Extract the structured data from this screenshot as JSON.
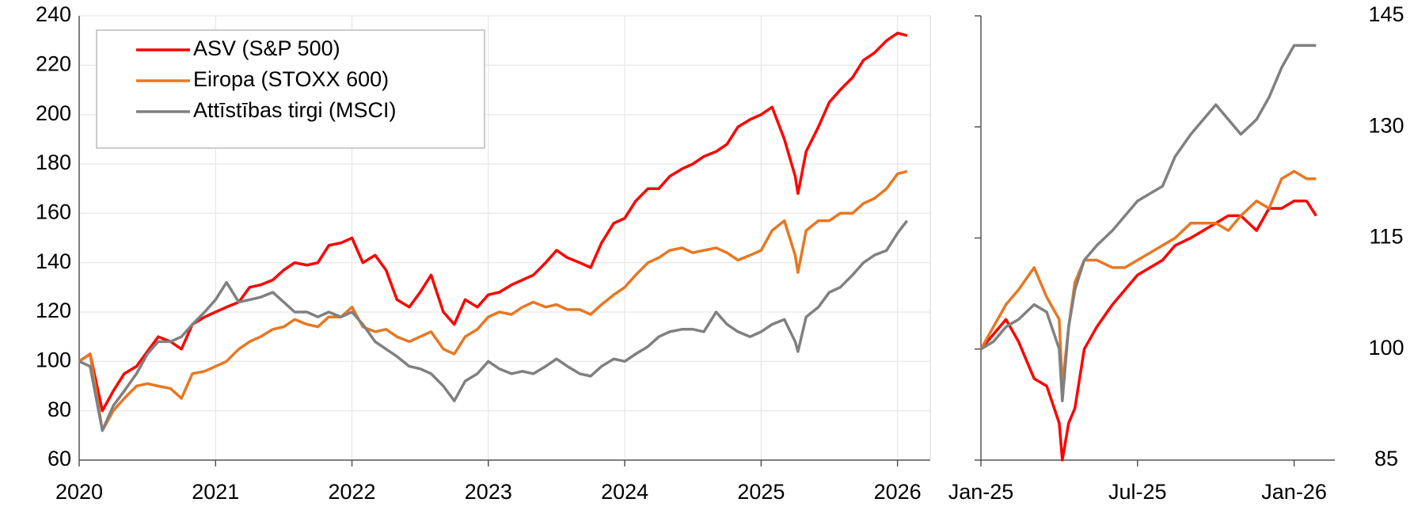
{
  "chart_data": [
    {
      "type": "line",
      "xlim": [
        2020,
        2026.24
      ],
      "xticks": [
        2020,
        2021,
        2022,
        2023,
        2024,
        2025,
        2026
      ],
      "ylim": [
        60,
        240
      ],
      "yticks": [
        60,
        80,
        100,
        120,
        140,
        160,
        180,
        200,
        220,
        240
      ],
      "grid": true,
      "legend": "upper left",
      "y_axis_position": "left",
      "x": [
        2020.0,
        2020.08,
        2020.17,
        2020.25,
        2020.33,
        2020.42,
        2020.5,
        2020.58,
        2020.67,
        2020.75,
        2020.83,
        2020.92,
        2021.0,
        2021.08,
        2021.17,
        2021.25,
        2021.33,
        2021.42,
        2021.5,
        2021.58,
        2021.67,
        2021.75,
        2021.83,
        2021.92,
        2022.0,
        2022.08,
        2022.17,
        2022.25,
        2022.33,
        2022.42,
        2022.5,
        2022.58,
        2022.67,
        2022.75,
        2022.83,
        2022.92,
        2023.0,
        2023.08,
        2023.17,
        2023.25,
        2023.33,
        2023.42,
        2023.5,
        2023.58,
        2023.67,
        2023.75,
        2023.83,
        2023.92,
        2024.0,
        2024.08,
        2024.17,
        2024.25,
        2024.33,
        2024.42,
        2024.5,
        2024.58,
        2024.67,
        2024.75,
        2024.83,
        2024.92,
        2025.0,
        2025.08,
        2025.17,
        2025.25,
        2025.27,
        2025.33,
        2025.42,
        2025.5,
        2025.58,
        2025.67,
        2025.75,
        2025.83,
        2025.92,
        2026.0,
        2026.07
      ],
      "series": [
        {
          "name": "ASV (S&P 500)",
          "color": "#ff0000",
          "values": [
            100,
            103,
            80,
            88,
            95,
            98,
            104,
            110,
            108,
            105,
            115,
            118,
            120,
            122,
            124,
            130,
            131,
            133,
            137,
            140,
            139,
            140,
            147,
            148,
            150,
            140,
            143,
            137,
            125,
            122,
            128,
            135,
            120,
            115,
            125,
            122,
            127,
            128,
            131,
            133,
            135,
            140,
            145,
            142,
            140,
            138,
            148,
            156,
            158,
            165,
            170,
            170,
            175,
            178,
            180,
            183,
            185,
            188,
            195,
            198,
            200,
            203,
            190,
            175,
            168,
            185,
            195,
            205,
            210,
            215,
            222,
            225,
            230,
            233,
            232
          ]
        },
        {
          "name": "Eiropa (STOXX 600)",
          "color": "#e87722",
          "values": [
            100,
            103,
            72,
            80,
            85,
            90,
            91,
            90,
            89,
            85,
            95,
            96,
            98,
            100,
            105,
            108,
            110,
            113,
            114,
            117,
            115,
            114,
            118,
            118,
            122,
            114,
            112,
            113,
            110,
            108,
            110,
            112,
            105,
            103,
            110,
            113,
            118,
            120,
            119,
            122,
            124,
            122,
            123,
            121,
            121,
            119,
            123,
            127,
            130,
            135,
            140,
            142,
            145,
            146,
            144,
            145,
            146,
            144,
            141,
            143,
            145,
            153,
            157,
            143,
            136,
            153,
            157,
            157,
            160,
            160,
            164,
            166,
            170,
            176,
            177
          ]
        },
        {
          "name": "Attīstības tirgi (MSCI)",
          "color": "#808080",
          "values": [
            100,
            98,
            72,
            82,
            88,
            95,
            103,
            108,
            108,
            110,
            115,
            120,
            125,
            132,
            124,
            125,
            126,
            128,
            124,
            120,
            120,
            118,
            120,
            118,
            120,
            115,
            108,
            105,
            102,
            98,
            97,
            95,
            90,
            84,
            92,
            95,
            100,
            97,
            95,
            96,
            95,
            98,
            101,
            98,
            95,
            94,
            98,
            101,
            100,
            103,
            106,
            110,
            112,
            113,
            113,
            112,
            120,
            115,
            112,
            110,
            112,
            115,
            117,
            108,
            104,
            118,
            122,
            128,
            130,
            135,
            140,
            143,
            145,
            152,
            157
          ]
        }
      ]
    },
    {
      "type": "line",
      "xlim": [
        2025,
        2026.13
      ],
      "xticks": [
        {
          "value": 2025,
          "label": "Jan-25"
        },
        {
          "value": 2025.5,
          "label": "Jul-25"
        },
        {
          "value": 2026,
          "label": "Jan-26"
        }
      ],
      "ylim": [
        85,
        145
      ],
      "yticks": [
        85,
        100,
        115,
        130,
        145
      ],
      "grid": false,
      "y_axis_position": "right",
      "x": [
        2025.0,
        2025.04,
        2025.08,
        2025.12,
        2025.17,
        2025.21,
        2025.25,
        2025.26,
        2025.28,
        2025.3,
        2025.33,
        2025.37,
        2025.42,
        2025.46,
        2025.5,
        2025.54,
        2025.58,
        2025.62,
        2025.67,
        2025.71,
        2025.75,
        2025.79,
        2025.83,
        2025.88,
        2025.92,
        2025.96,
        2026.0,
        2026.04,
        2026.07
      ],
      "series": [
        {
          "name": "ASV (S&P 500)",
          "color": "#ff0000",
          "values": [
            100,
            102,
            104,
            101,
            96,
            95,
            90,
            85,
            90,
            92,
            100,
            103,
            106,
            108,
            110,
            111,
            112,
            114,
            115,
            116,
            117,
            118,
            118,
            116,
            119,
            119,
            120,
            120,
            118
          ]
        },
        {
          "name": "Eiropa (STOXX 600)",
          "color": "#e87722",
          "values": [
            100,
            103,
            106,
            108,
            111,
            107,
            104,
            95,
            103,
            109,
            112,
            112,
            111,
            111,
            112,
            113,
            114,
            115,
            117,
            117,
            117,
            116,
            118,
            120,
            119,
            123,
            124,
            123,
            123
          ]
        },
        {
          "name": "Attīstības tirgi (MSCI)",
          "color": "#808080",
          "values": [
            100,
            101,
            103,
            104,
            106,
            105,
            100,
            93,
            103,
            108,
            112,
            114,
            116,
            118,
            120,
            121,
            122,
            126,
            129,
            131,
            133,
            131,
            129,
            131,
            134,
            138,
            141,
            141,
            141
          ]
        }
      ]
    }
  ]
}
